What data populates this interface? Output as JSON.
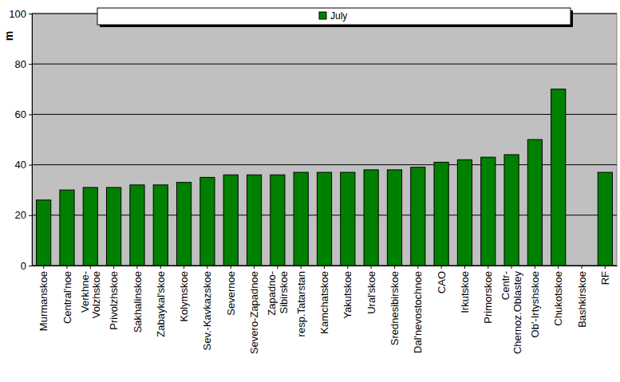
{
  "chart_data": {
    "type": "bar",
    "y_label": "m",
    "categories": [
      "Murmanskoe",
      "Central'noe",
      "Verkhne-\nVolzhskoe",
      "Privolzhskoe",
      "Sakhalinskoe",
      "Zabaykal'skoe",
      "Kolymskoe",
      "Sev.-Kavkazskoe",
      "Severnoe",
      "Severo-Zapadnoe",
      "Zapadno-\nSibirskoe",
      "resp.Tatarstan",
      "Kamchatskoe",
      "Yakutskoe",
      "Ural'skoe",
      "Srednesibirskoe",
      "Dal'nevostochnoe",
      "CAO",
      "Irkutskoe",
      "Primorskoe",
      "Centr-\nChernoz.Oblastey",
      "Ob'-Irtyshskoe",
      "Chukotskoe",
      "Bashkirskoe",
      "RF"
    ],
    "series": [
      {
        "name": "July",
        "color": "#008000",
        "values": [
          26,
          30,
          31,
          31,
          32,
          32,
          33,
          35,
          36,
          36,
          36,
          37,
          37,
          37,
          38,
          38,
          39,
          41,
          42,
          43,
          44,
          50,
          70,
          null,
          37
        ]
      }
    ],
    "ylim": [
      0,
      100
    ],
    "yticks": [
      0,
      20,
      40,
      60,
      80,
      100
    ],
    "grid": true,
    "legend": "top"
  }
}
